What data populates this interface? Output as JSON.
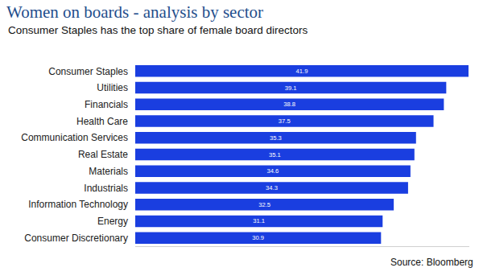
{
  "chart_data": {
    "type": "bar",
    "orientation": "horizontal",
    "title": "Women on boards - analysis by sector",
    "subtitle": "Consumer Staples has the top share of female board directors",
    "annotations": [
      "Source: Bloomberg"
    ],
    "categories": [
      "Consumer Staples",
      "Utilities",
      "Financials",
      "Health Care",
      "Communication Services",
      "Real Estate",
      "Materials",
      "Industrials",
      "Information Technology",
      "Energy",
      "Consumer Discretionary"
    ],
    "values": [
      41.9,
      39.1,
      38.8,
      37.5,
      35.3,
      35.1,
      34.6,
      34.3,
      32.5,
      31.1,
      30.9
    ],
    "color": "#1a3ee0",
    "xlim": [
      0,
      42
    ],
    "xticks": [],
    "data_labels": true,
    "tick_labels": "y",
    "grid": false
  }
}
